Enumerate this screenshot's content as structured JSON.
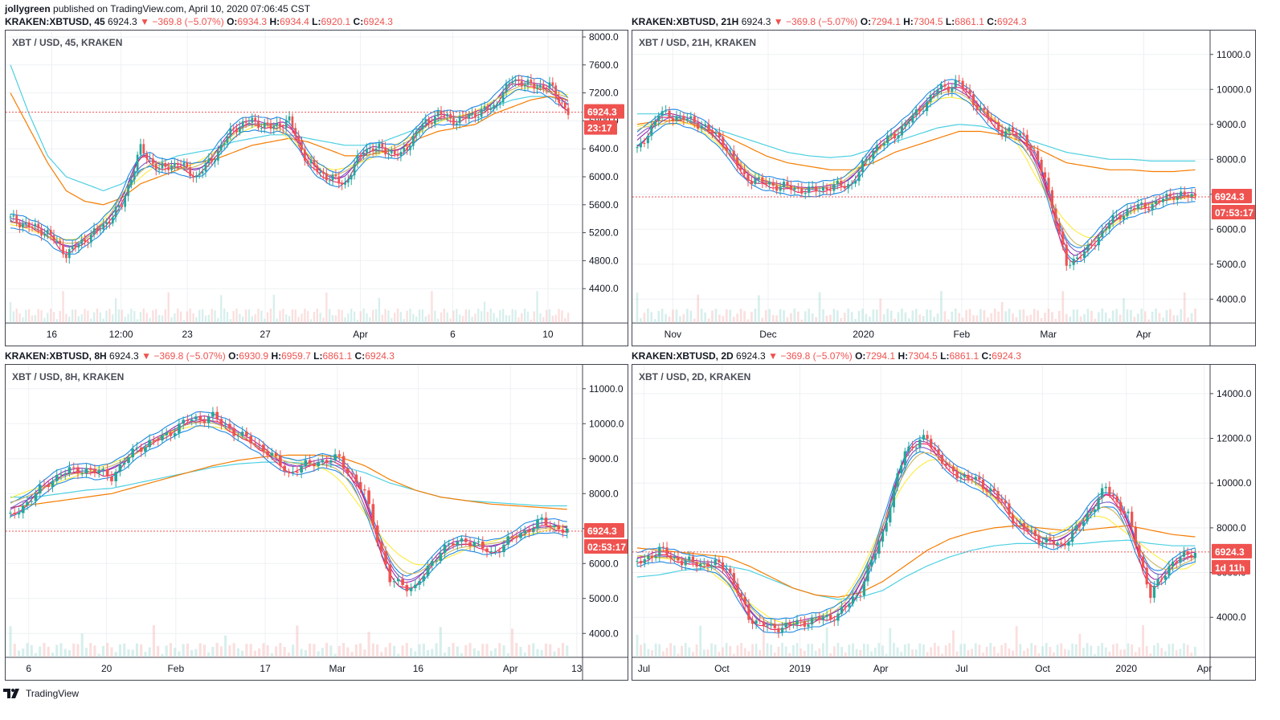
{
  "header": {
    "user": "jollygreen",
    "published": "published on TradingView.com, April 10, 2020 07:06:45 CST"
  },
  "footer": {
    "brand": "TradingView",
    "logo_icon": "tradingview-logo-icon"
  },
  "colors": {
    "up": "#26a69a",
    "down": "#ef5350",
    "grid": "#eef0f3",
    "ma_cyan": "#4dd0e1",
    "ma_orange": "#f57c00",
    "ma_yellow": "#ffeb3b",
    "ma_purple": "#9c27b0",
    "ma_violet": "#7e57c2",
    "ma_pink": "#e91e63",
    "ma_tan": "#c8b560",
    "ma_blue": "#1e88e5",
    "price_line": "#ef5350"
  },
  "panels": [
    {
      "symbol": "KRAKEN:XBTUSD, 45",
      "last": "6924.3",
      "arrow": "▼",
      "change": "−369.8 (−5.07%)",
      "o": "6934.3",
      "h": "6934.4",
      "l": "6920.1",
      "c": "6924.3",
      "label": "XBT / USD, 45, KRAKEN",
      "price_tag": "6924.3",
      "timer": "23:17"
    },
    {
      "symbol": "KRAKEN:XBTUSD, 21H",
      "last": "6924.3",
      "arrow": "▼",
      "change": "−369.8 (−5.07%)",
      "o": "7294.1",
      "h": "7304.5",
      "l": "6861.1",
      "c": "6924.3",
      "label": "XBT / USD, 21H, KRAKEN",
      "price_tag": "6924.3",
      "timer": "07:53:17"
    },
    {
      "symbol": "KRAKEN:XBTUSD, 8H",
      "last": "6924.3",
      "arrow": "▼",
      "change": "−369.8 (−5.07%)",
      "o": "6930.9",
      "h": "6959.7",
      "l": "6861.1",
      "c": "6924.3",
      "label": "XBT / USD, 8H, KRAKEN",
      "price_tag": "6924.3",
      "timer": "02:53:17"
    },
    {
      "symbol": "KRAKEN:XBTUSD, 2D",
      "last": "6924.3",
      "arrow": "▼",
      "change": "−369.8 (−5.07%)",
      "o": "7294.1",
      "h": "7304.5",
      "l": "6861.1",
      "c": "6924.3",
      "label": "XBT / USD, 2D, KRAKEN",
      "price_tag": "6924.3",
      "timer": "1d 11h"
    }
  ],
  "chart_data": [
    {
      "type": "candlestick",
      "title": "XBT / USD, 45, KRAKEN",
      "ylim": [
        4000,
        8000
      ],
      "y_ticks": [
        "8000.0",
        "7600.0",
        "7200.0",
        "6800.0",
        "6400.0",
        "6000.0",
        "5600.0",
        "5200.0",
        "4800.0",
        "4400.0"
      ],
      "y_tick_values": [
        8000,
        7600,
        7200,
        6800,
        6400,
        6000,
        5600,
        5200,
        4800,
        4400
      ],
      "x_ticks": [
        "16",
        "12:00",
        "23",
        "27",
        "Apr",
        "6",
        "10"
      ],
      "x_tick_pos": [
        0.08,
        0.2,
        0.315,
        0.45,
        0.615,
        0.775,
        0.94
      ],
      "close": [
        5400,
        5300,
        5200,
        4900,
        5100,
        5300,
        5600,
        6400,
        6100,
        6200,
        6000,
        6300,
        6700,
        6800,
        6700,
        6800,
        6200,
        6000,
        5900,
        6400,
        6400,
        6300,
        6700,
        6900,
        6800,
        6900,
        7000,
        7400,
        7300,
        7300,
        6924
      ],
      "ma_cyan": [
        7600,
        6900,
        6300,
        6000,
        5900,
        5800,
        5900,
        6100,
        6200,
        6300,
        6350,
        6400,
        6500,
        6550,
        6600,
        6600,
        6550,
        6500,
        6450,
        6450,
        6500,
        6600,
        6700,
        6800,
        6850,
        6900,
        7000,
        7100,
        7150,
        7150,
        7050
      ],
      "ma_orange": [
        7200,
        6700,
        6200,
        5800,
        5650,
        5600,
        5700,
        5900,
        6000,
        6100,
        6200,
        6250,
        6350,
        6450,
        6500,
        6550,
        6500,
        6400,
        6300,
        6300,
        6350,
        6400,
        6550,
        6650,
        6700,
        6750,
        6900,
        7000,
        7100,
        7150,
        7100
      ],
      "price_line": 6924.3
    },
    {
      "type": "candlestick",
      "title": "XBT / USD, 21H, KRAKEN",
      "ylim": [
        3500,
        11500
      ],
      "y_ticks": [
        "11000.0",
        "10000.0",
        "9000.0",
        "8000.0",
        "7000.0",
        "6000.0",
        "5000.0",
        "4000.0"
      ],
      "y_tick_values": [
        11000,
        10000,
        9000,
        8000,
        7000,
        6000,
        5000,
        4000
      ],
      "x_ticks": [
        "Nov",
        "Dec",
        "2020",
        "Feb",
        "Mar",
        "Apr"
      ],
      "x_tick_pos": [
        0.07,
        0.235,
        0.4,
        0.57,
        0.72,
        0.885
      ],
      "close": [
        8200,
        9300,
        9200,
        9000,
        8500,
        7500,
        7300,
        7200,
        7100,
        7200,
        7300,
        8300,
        8700,
        9300,
        10000,
        10200,
        9400,
        8800,
        8700,
        7500,
        5000,
        5400,
        6200,
        6600,
        6700,
        7000,
        6924
      ],
      "ma_cyan": [
        9300,
        9300,
        9200,
        9000,
        8800,
        8600,
        8400,
        8200,
        8100,
        8050,
        8100,
        8300,
        8500,
        8700,
        8900,
        9000,
        8950,
        8800,
        8600,
        8400,
        8200,
        8100,
        8000,
        8000,
        7950,
        7950,
        7950
      ],
      "ma_orange": [
        9000,
        9100,
        9100,
        8900,
        8700,
        8400,
        8100,
        7900,
        7800,
        7700,
        7700,
        7900,
        8200,
        8400,
        8600,
        8800,
        8800,
        8700,
        8500,
        8200,
        7900,
        7800,
        7700,
        7700,
        7650,
        7650,
        7700
      ],
      "price_line": 6924.3
    },
    {
      "type": "candlestick",
      "title": "XBT / USD, 8H, KRAKEN",
      "ylim": [
        3500,
        11500
      ],
      "y_ticks": [
        "11000.0",
        "10000.0",
        "9000.0",
        "8000.0",
        "7000.0",
        "6000.0",
        "5000.0",
        "4000.0"
      ],
      "y_tick_values": [
        11000,
        10000,
        9000,
        8000,
        7000,
        6000,
        5000,
        4000
      ],
      "x_ticks": [
        "6",
        "20",
        "Feb",
        "17",
        "Mar",
        "16",
        "Apr",
        "13"
      ],
      "x_tick_pos": [
        0.04,
        0.175,
        0.295,
        0.45,
        0.575,
        0.715,
        0.875,
        0.99
      ],
      "close": [
        7300,
        8000,
        8600,
        8700,
        8500,
        9300,
        9600,
        10100,
        10200,
        9700,
        9300,
        8600,
        8900,
        9000,
        8000,
        5500,
        5300,
        6400,
        6700,
        6300,
        6800,
        7200,
        6924
      ],
      "ma_cyan": [
        7900,
        7900,
        8000,
        8100,
        8150,
        8300,
        8450,
        8600,
        8750,
        8850,
        8900,
        8900,
        8850,
        8800,
        8600,
        8300,
        8100,
        7900,
        7800,
        7750,
        7700,
        7650,
        7650
      ],
      "ma_orange": [
        7600,
        7700,
        7800,
        7900,
        8000,
        8200,
        8400,
        8600,
        8800,
        8950,
        9050,
        9100,
        9100,
        9050,
        8800,
        8400,
        8100,
        7900,
        7800,
        7700,
        7650,
        7600,
        7550
      ],
      "price_line": 6924.3
    },
    {
      "type": "candlestick",
      "title": "XBT / USD, 2D, KRAKEN",
      "ylim": [
        2500,
        15000
      ],
      "y_ticks": [
        "14000.0",
        "12000.0",
        "10000.0",
        "8000.0",
        "6000.0",
        "4000.0"
      ],
      "y_tick_values": [
        14000,
        12000,
        10000,
        8000,
        6000,
        4000
      ],
      "x_ticks": [
        "Jul",
        "Oct",
        "2019",
        "Apr",
        "Jul",
        "Oct",
        "2020",
        "Apr"
      ],
      "x_tick_pos": [
        0.02,
        0.155,
        0.29,
        0.43,
        0.57,
        0.71,
        0.855,
        0.99
      ],
      "close": [
        6400,
        7000,
        6500,
        6400,
        6300,
        4000,
        3500,
        3700,
        3900,
        4100,
        5200,
        7800,
        11500,
        12000,
        10500,
        10200,
        9600,
        8200,
        7500,
        7200,
        8300,
        9800,
        8500,
        5000,
        6500,
        6924
      ],
      "ma_cyan": [
        5800,
        5900,
        6100,
        6200,
        6300,
        6100,
        5700,
        5300,
        5000,
        4800,
        4900,
        5200,
        5800,
        6300,
        6700,
        7000,
        7200,
        7300,
        7300,
        7250,
        7300,
        7400,
        7450,
        7300,
        7200,
        7200
      ],
      "ma_orange": [
        7100,
        7000,
        6900,
        6800,
        6700,
        6300,
        5800,
        5300,
        5000,
        4900,
        5100,
        5600,
        6300,
        7000,
        7500,
        7800,
        8000,
        8100,
        8000,
        7900,
        7900,
        8000,
        8100,
        7900,
        7700,
        7600
      ],
      "price_line": 6924.3
    }
  ]
}
